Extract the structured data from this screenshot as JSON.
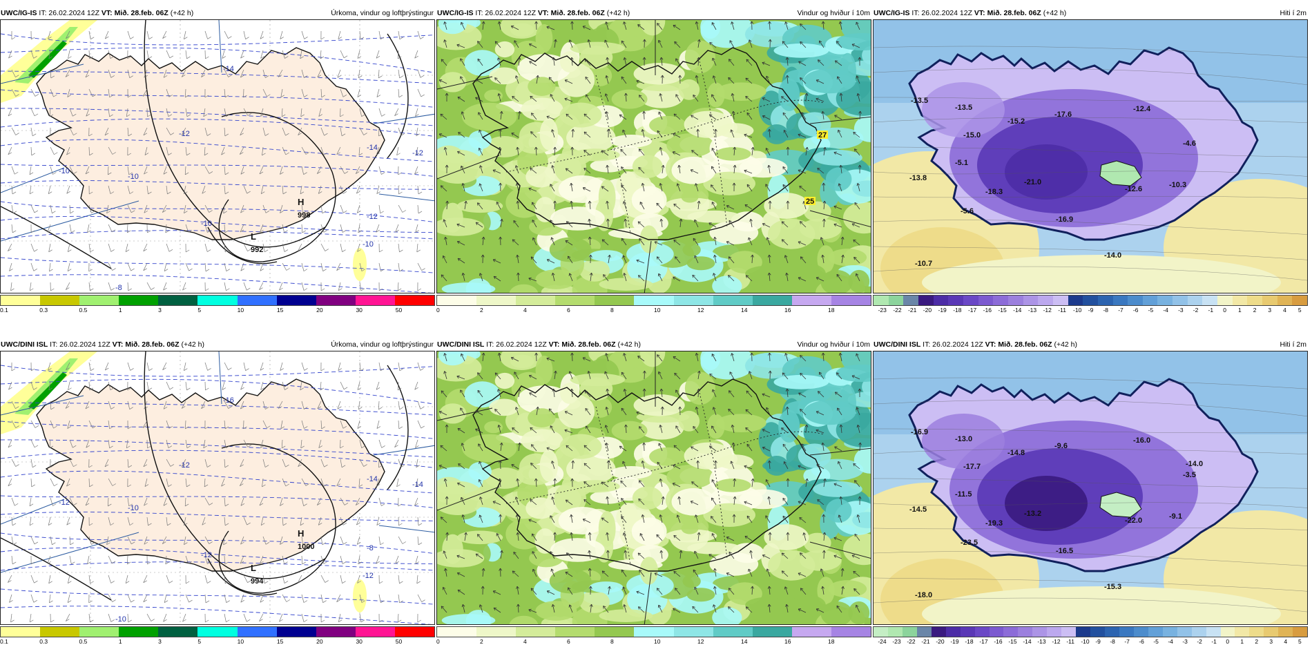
{
  "rows": [
    {
      "panels": [
        {
          "kind": "precip",
          "model": "UWC/IG-IS",
          "it_text": "IT: 26.02.2024 12Z",
          "vt_text": "VT: Mið. 28.feb. 06Z",
          "lead": "(+42 h)",
          "title": "Úrkoma, vindur og loftþrýstingur",
          "pressure_labels": [
            {
              "text": "H",
              "kind": "high"
            },
            {
              "text": "998",
              "kind": "value"
            },
            {
              "text": "L",
              "kind": "low"
            },
            {
              "text": "992",
              "kind": "value"
            }
          ],
          "temp_labels": [
            "-14",
            "-12",
            "-14",
            "-12",
            "-10",
            "-10",
            "-10",
            "-10",
            "-8",
            "-12"
          ],
          "scale": {
            "labels": [
              "0.1",
              "0.3",
              "0.5",
              "1",
              "3",
              "5",
              "10",
              "15",
              "20",
              "30",
              "50"
            ],
            "colors": [
              "#ffff99",
              "#c8c800",
              "#a0f070",
              "#00a000",
              "#006040",
              "#00ffe0",
              "#3070ff",
              "#000090",
              "#800080",
              "#ff1493",
              "#ff0000"
            ]
          }
        },
        {
          "kind": "wind",
          "model": "UWC/IG-IS",
          "it_text": "IT: 26.02.2024 12Z",
          "vt_text": "VT: Mið. 28.feb. 06Z",
          "lead": "(+42 h)",
          "title": "Vindur og hviður í 10m",
          "gust_labels": [
            "27",
            "25"
          ],
          "scale": {
            "labels": [
              "0",
              "2",
              "4",
              "6",
              "8",
              "10",
              "12",
              "14",
              "16",
              "18"
            ],
            "colors": [
              "#fdfde8",
              "#eef7c8",
              "#d4ec9a",
              "#b4dc6e",
              "#94c850",
              "#a8fafa",
              "#8ee6e6",
              "#60cbc6",
              "#3aa8a0",
              "#c6a8f0",
              "#a684e4"
            ]
          }
        },
        {
          "kind": "temp",
          "model": "UWC/IG-IS",
          "it_text": "IT: 26.02.2024 12Z",
          "vt_text": "VT: Mið. 28.feb. 06Z",
          "lead": "(+42 h)",
          "title": "Hiti í 2m",
          "value_labels": [
            "-13.5",
            "-13.5",
            "-15.2",
            "-17.6",
            "-12.4",
            "-15.0",
            "-4.6",
            "-5.1",
            "-13.8",
            "-21.0",
            "-18.3",
            "-12.6",
            "-10.3",
            "-5.6",
            "-16.9",
            "-14.0",
            "-10.7"
          ],
          "scale": {
            "labels": [
              "-23",
              "-22",
              "-21",
              "-20",
              "-19",
              "-18",
              "-17",
              "-16",
              "-15",
              "-14",
              "-13",
              "-12",
              "-11",
              "-10",
              "-9",
              "-8",
              "-7",
              "-6",
              "-5",
              "-4",
              "-3",
              "-2",
              "-1",
              "0",
              "1",
              "2",
              "3",
              "4",
              "5"
            ],
            "colors": [
              "#b0e8b0",
              "#8cd49c",
              "#6a86a8",
              "#3a1a80",
              "#4c2ca6",
              "#5a38b6",
              "#6a48c6",
              "#7c5ad0",
              "#8c6cd8",
              "#9c80de",
              "#ac94e6",
              "#bca8ee",
              "#ccbef4",
              "#1c3a8c",
              "#22509e",
              "#2c64b0",
              "#3a78c0",
              "#4c8ccc",
              "#62a0d8",
              "#78b2e0",
              "#92c2e8",
              "#acd2ee",
              "#c8e2f4",
              "#f2f4c8",
              "#f2e8a6",
              "#eedc8a",
              "#e8ca70",
              "#e0b456",
              "#d89c40"
            ]
          }
        }
      ]
    },
    {
      "panels": [
        {
          "kind": "precip",
          "model": "UWC/DINI ISL",
          "it_text": "IT: 26.02.2024 12Z",
          "vt_text": "VT: Mið. 28.feb. 06Z",
          "lead": "(+42 h)",
          "title": "Úrkoma, vindur og loftþrýstingur",
          "pressure_labels": [
            {
              "text": "H",
              "kind": "high"
            },
            {
              "text": "1000",
              "kind": "value"
            },
            {
              "text": "L",
              "kind": "low"
            },
            {
              "text": "994",
              "kind": "value"
            }
          ],
          "temp_labels": [
            "-16",
            "-12",
            "-14",
            "-14",
            "-12",
            "-10",
            "-12",
            "-12",
            "-10",
            "-8"
          ],
          "scale": {
            "labels": [
              "0.1",
              "0.3",
              "0.5",
              "1",
              "3",
              "5",
              "10",
              "15",
              "20",
              "30",
              "50"
            ],
            "colors": [
              "#ffff99",
              "#c8c800",
              "#a0f070",
              "#00a000",
              "#006040",
              "#00ffe0",
              "#3070ff",
              "#000090",
              "#800080",
              "#ff1493",
              "#ff0000"
            ]
          }
        },
        {
          "kind": "wind",
          "model": "UWC/DINI ISL",
          "it_text": "IT: 26.02.2024 12Z",
          "vt_text": "VT: Mið. 28.feb. 06Z",
          "lead": "(+42 h)",
          "title": "Vindur og hviður í 10m",
          "gust_labels": [],
          "scale": {
            "labels": [
              "0",
              "2",
              "4",
              "6",
              "8",
              "10",
              "12",
              "14",
              "16",
              "18"
            ],
            "colors": [
              "#fdfde8",
              "#eef7c8",
              "#d4ec9a",
              "#b4dc6e",
              "#94c850",
              "#a8fafa",
              "#8ee6e6",
              "#60cbc6",
              "#3aa8a0",
              "#c6a8f0",
              "#a684e4"
            ]
          }
        },
        {
          "kind": "temp",
          "model": "UWC/DINI ISL",
          "it_text": "IT: 26.02.2024 12Z",
          "vt_text": "VT: Mið. 28.feb. 06Z",
          "lead": "(+42 h)",
          "title": "Hiti í 2m",
          "value_labels": [
            "-16.9",
            "-13.0",
            "-14.8",
            "-9.6",
            "-16.0",
            "-17.7",
            "-3.5",
            "-11.5",
            "-14.5",
            "-13.2",
            "-19.3",
            "-22.0",
            "-9.1",
            "-23.5",
            "-16.5",
            "-15.3",
            "-18.0",
            "-14.0"
          ],
          "scale": {
            "labels": [
              "-24",
              "-23",
              "-22",
              "-21",
              "-20",
              "-19",
              "-18",
              "-17",
              "-16",
              "-15",
              "-14",
              "-13",
              "-12",
              "-11",
              "-10",
              "-9",
              "-8",
              "-7",
              "-6",
              "-5",
              "-4",
              "-3",
              "-2",
              "-1",
              "0",
              "1",
              "2",
              "3",
              "4",
              "5"
            ],
            "colors": [
              "#c4eec4",
              "#b0e8b0",
              "#8cd49c",
              "#6a86a8",
              "#3a1a80",
              "#4c2ca6",
              "#5a38b6",
              "#6a48c6",
              "#7c5ad0",
              "#8c6cd8",
              "#9c80de",
              "#ac94e6",
              "#bca8ee",
              "#ccbef4",
              "#1c3a8c",
              "#22509e",
              "#2c64b0",
              "#3a78c0",
              "#4c8ccc",
              "#62a0d8",
              "#78b2e0",
              "#92c2e8",
              "#acd2ee",
              "#c8e2f4",
              "#f2f4c8",
              "#f2e8a6",
              "#eedc8a",
              "#e8ca70",
              "#e0b456",
              "#d89c40"
            ]
          }
        }
      ]
    }
  ]
}
